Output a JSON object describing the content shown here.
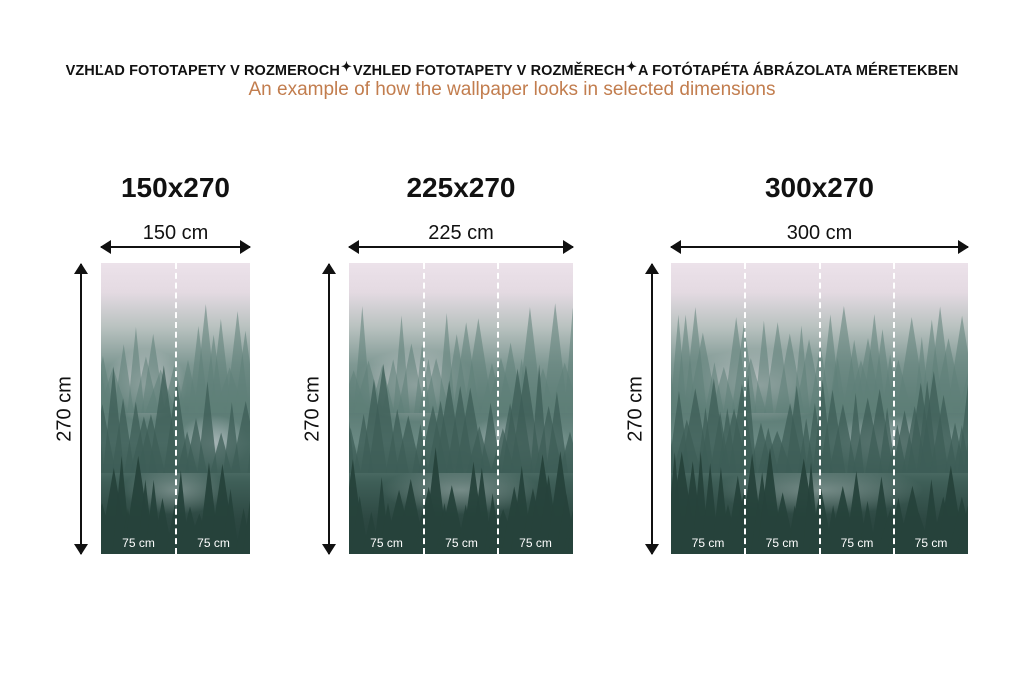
{
  "header": {
    "title_sk": "VZHĽAD FOTOTAPETY V ROZMEROCH",
    "title_cz": "VZHLED FOTOTAPETY V ROZMĚRECH",
    "title_hu": "A FOTÓTAPÉTA ÁBRÁZOLATA MÉRETEKBEN",
    "separator_icon": "sparkle-icon",
    "subtitle": "An example of how the wallpaper looks in selected dimensions",
    "subtitle_color": "#c27d4e"
  },
  "panels": [
    {
      "title": "150x270",
      "width_label": "150 cm",
      "height_label": "270 cm",
      "segments": [
        "75 cm",
        "75 cm"
      ]
    },
    {
      "title": "225x270",
      "width_label": "225 cm",
      "height_label": "270 cm",
      "segments": [
        "75 cm",
        "75 cm",
        "75 cm"
      ]
    },
    {
      "title": "300x270",
      "width_label": "300 cm",
      "height_label": "270 cm",
      "segments": [
        "75 cm",
        "75 cm",
        "75 cm",
        "75 cm"
      ]
    }
  ]
}
